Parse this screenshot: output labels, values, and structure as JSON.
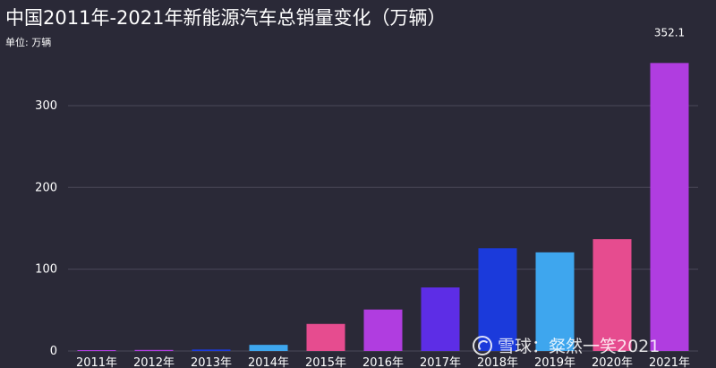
{
  "title": "中国2011年-2021年新能源汽车总销量变化（万辆）",
  "unit_label": "单位: 万辆",
  "watermark": {
    "text": "雪球：粲然一笑2021",
    "icon": "xueqiu-logo-icon"
  },
  "chart_data": {
    "type": "bar",
    "title": "中国2011年-2021年新能源汽车总销量变化（万辆）",
    "ylabel": "单位: 万辆",
    "xlabel": "",
    "categories": [
      "2011年",
      "2012年",
      "2013年",
      "2014年",
      "2015年",
      "2016年",
      "2017年",
      "2018年",
      "2019年",
      "2020年",
      "2021年"
    ],
    "values": [
      0.8,
      1.3,
      1.8,
      7.5,
      33.1,
      50.7,
      77.7,
      125.6,
      120.6,
      136.7,
      352.1
    ],
    "value_labels": [
      null,
      null,
      null,
      null,
      null,
      null,
      null,
      null,
      null,
      null,
      "352.1"
    ],
    "colors": [
      "#b03de0",
      "#b03de0",
      "#1b3adb",
      "#3ea6ee",
      "#e64c8f",
      "#b03de0",
      "#5d2de6",
      "#1b3adb",
      "#3ea6ee",
      "#e64c8f",
      "#b03de0"
    ],
    "yticks": [
      0,
      100,
      200,
      300
    ],
    "ylim": [
      0,
      370
    ],
    "grid": true,
    "legend": "none"
  }
}
